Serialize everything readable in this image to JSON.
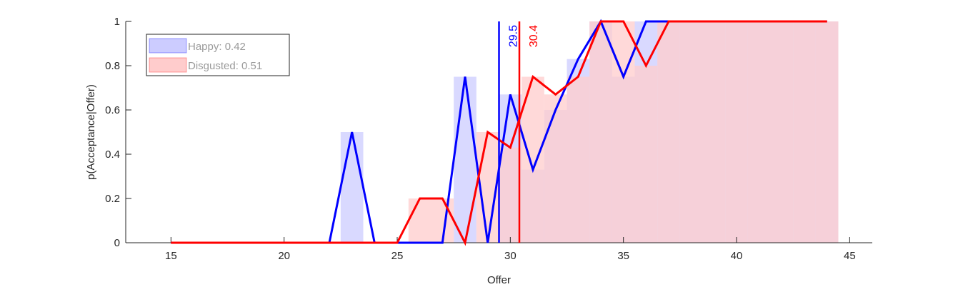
{
  "chart_data": {
    "type": "line",
    "xlabel": "Offer",
    "ylabel": "p(Acceptance|Offer)",
    "xlim": [
      13,
      46
    ],
    "ylim": [
      0,
      1
    ],
    "xticks": [
      15,
      20,
      25,
      30,
      35,
      40,
      45
    ],
    "yticks": [
      0,
      0.2,
      0.4,
      0.6,
      0.8,
      1
    ],
    "ytick_labels": [
      "0",
      "0.2",
      "0.4",
      "0.6",
      "0.8",
      "1"
    ],
    "grid": false,
    "legend_position": "top-left",
    "series": [
      {
        "name": "Happy: 0.42",
        "color": "#0000ff",
        "fill_color": "#ccccff",
        "x": [
          15,
          16,
          17,
          18,
          19,
          20,
          21,
          22,
          23,
          24,
          25,
          26,
          27,
          28,
          29,
          30,
          31,
          32,
          33,
          34,
          35,
          36,
          37,
          38,
          39,
          40,
          41,
          42,
          43,
          44
        ],
        "values": [
          0,
          0,
          0,
          0,
          0,
          0,
          0,
          0,
          0.5,
          0,
          0,
          0,
          0,
          0.75,
          0,
          0.67,
          0.33,
          0.6,
          0.83,
          1,
          0.75,
          1,
          1,
          1,
          1,
          1,
          1,
          1,
          1,
          1
        ],
        "bars": [
          {
            "x": 23,
            "value": 0.5
          },
          {
            "x": 28,
            "value": 0.75
          },
          {
            "x": 30,
            "value": 0.67
          },
          {
            "x": 31,
            "value": 0.33
          },
          {
            "x": 32,
            "value": 0.6
          },
          {
            "x": 33,
            "value": 0.83
          },
          {
            "x": 34,
            "value": 1
          },
          {
            "x": 35,
            "value": 0.75
          },
          {
            "x": 36,
            "value": 1
          },
          {
            "x": 37,
            "value": 1
          },
          {
            "x": 38,
            "value": 1
          },
          {
            "x": 39,
            "value": 1
          },
          {
            "x": 40,
            "value": 1
          },
          {
            "x": 41,
            "value": 1
          },
          {
            "x": 42,
            "value": 1
          },
          {
            "x": 43,
            "value": 1
          },
          {
            "x": 44,
            "value": 1
          }
        ],
        "threshold": 29.5,
        "threshold_label": "29.5"
      },
      {
        "name": "Disgusted: 0.51",
        "color": "#ff0000",
        "fill_color": "#ffcccc",
        "x": [
          15,
          16,
          17,
          18,
          19,
          20,
          21,
          22,
          23,
          24,
          25,
          26,
          27,
          28,
          29,
          30,
          31,
          32,
          33,
          34,
          35,
          36,
          37,
          38,
          39,
          40,
          41,
          42,
          43,
          44
        ],
        "values": [
          0,
          0,
          0,
          0,
          0,
          0,
          0,
          0,
          0,
          0,
          0,
          0.2,
          0.2,
          0,
          0.5,
          0.43,
          0.75,
          0.67,
          0.75,
          1,
          1,
          0.8,
          1,
          1,
          1,
          1,
          1,
          1,
          1,
          1
        ],
        "bars": [
          {
            "x": 26,
            "value": 0.2
          },
          {
            "x": 27,
            "value": 0.2
          },
          {
            "x": 29,
            "value": 0.5
          },
          {
            "x": 30,
            "value": 0.43
          },
          {
            "x": 31,
            "value": 0.75
          },
          {
            "x": 32,
            "value": 0.67
          },
          {
            "x": 33,
            "value": 0.75
          },
          {
            "x": 34,
            "value": 1
          },
          {
            "x": 35,
            "value": 1
          },
          {
            "x": 36,
            "value": 0.8
          },
          {
            "x": 37,
            "value": 1
          },
          {
            "x": 38,
            "value": 1
          },
          {
            "x": 39,
            "value": 1
          },
          {
            "x": 40,
            "value": 1
          },
          {
            "x": 41,
            "value": 1
          },
          {
            "x": 42,
            "value": 1
          },
          {
            "x": 43,
            "value": 1
          },
          {
            "x": 44,
            "value": 1
          }
        ],
        "threshold": 30.4,
        "threshold_label": "30.4"
      }
    ]
  }
}
